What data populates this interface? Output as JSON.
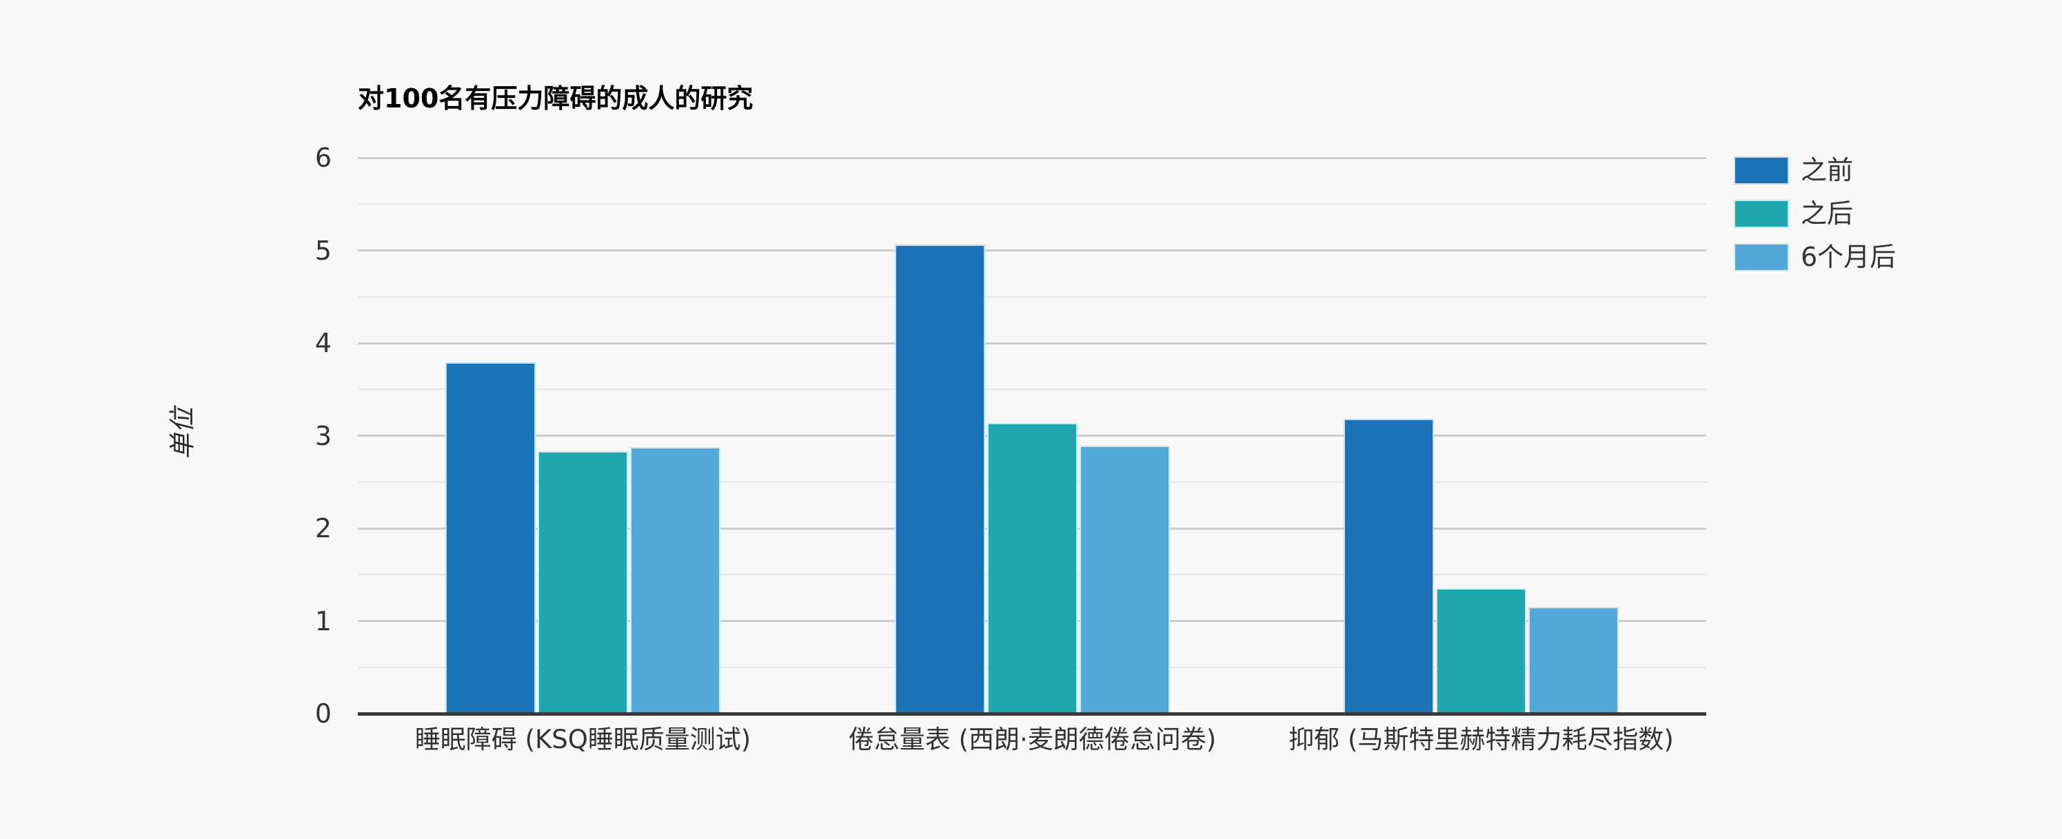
{
  "chart_data": {
    "type": "bar",
    "title": "对100名有压力障碍的成人的研究",
    "xlabel": "",
    "ylabel": "单位",
    "ylim": [
      0,
      6
    ],
    "ytick_step": 1,
    "minor_gridline_step": 0.5,
    "grid": true,
    "legend_position": "top-right",
    "background_color": "#f8f8f8",
    "axis_line_color": "#383838",
    "major_gridline_color": "#cdcdcd",
    "minor_gridline_color": "#e7e7e7",
    "text_color": "#333333",
    "title_color": "#000000",
    "yticks": [
      0,
      1,
      2,
      3,
      4,
      5,
      6
    ],
    "categories": [
      "睡眠障碍 (KSQ睡眠质量测试)",
      "倦怠量表 (西朗·麦朗德倦怠问卷)",
      "抑郁 (马斯特里赫特精力耗尽指数)"
    ],
    "series": [
      {
        "name": "之前",
        "color": "#1b74b8",
        "values": [
          3.79,
          5.06,
          3.18
        ]
      },
      {
        "name": "之后",
        "color": "#1fa7ae",
        "values": [
          2.83,
          3.14,
          1.35
        ]
      },
      {
        "name": "6个月后",
        "color": "#52a8d8",
        "values": [
          2.88,
          2.89,
          1.15
        ]
      }
    ]
  }
}
